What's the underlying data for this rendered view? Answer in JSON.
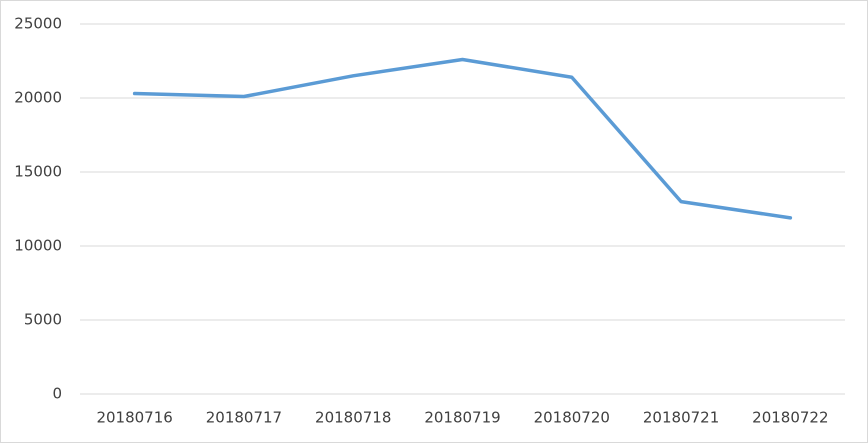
{
  "chart_data": {
    "type": "line",
    "categories": [
      "20180716",
      "20180717",
      "20180718",
      "20180719",
      "20180720",
      "20180721",
      "20180722"
    ],
    "series": [
      {
        "name": null,
        "color": "#5b9bd5",
        "values": [
          20300,
          20100,
          21500,
          22600,
          21400,
          13000,
          11900
        ]
      }
    ],
    "ylim": [
      0,
      25000
    ],
    "yticks": [
      0,
      5000,
      10000,
      15000,
      20000,
      25000
    ],
    "grid": true
  }
}
